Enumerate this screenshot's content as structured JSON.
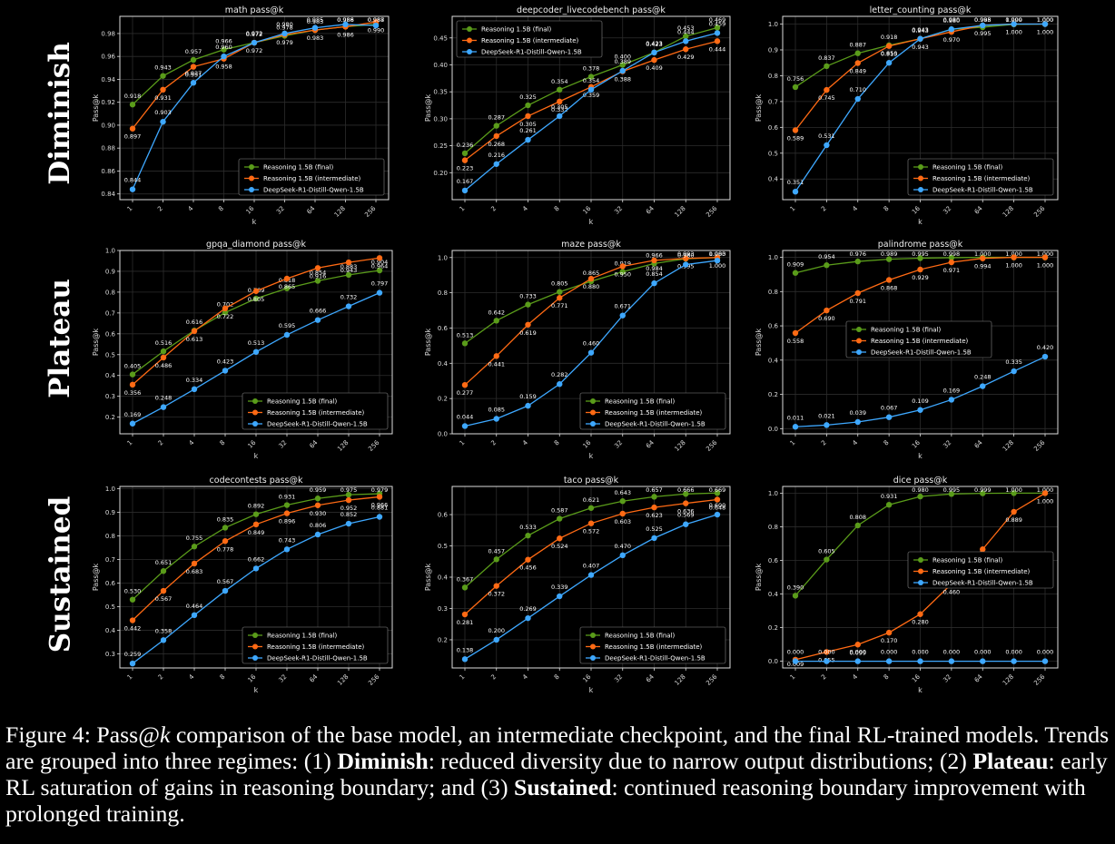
{
  "row_labels": [
    "Diminish",
    "Plateau",
    "Sustained"
  ],
  "series_names": [
    "Reasoning 1.5B (final)",
    "Reasoning 1.5B (intermediate)",
    "DeepSeek-R1-Distill-Qwen-1.5B"
  ],
  "series_colors": [
    "#5a9c1a",
    "#ff6a14",
    "#3ea8ff"
  ],
  "caption": {
    "prefix": "Figure 4: Pass@",
    "k": "k",
    "text1": " comparison of the base model, an intermediate checkpoint, and the final RL-trained models. Trends are grouped into three regimes: (1) ",
    "b1": "Diminish",
    "text2": ": reduced diversity due to narrow output distributions; (2) ",
    "b2": "Plateau",
    "text3": ": early RL saturation of gains in reasoning boundary; and (3) ",
    "b3": "Sustained",
    "text4": ": continued reasoning boundary improvement with prolonged training."
  },
  "chart_data": [
    {
      "type": "line",
      "title": "math pass@k",
      "xlabel": "k",
      "ylabel": "Pass@k",
      "categories": [
        "1",
        "2",
        "4",
        "8",
        "16",
        "32",
        "64",
        "128",
        "256"
      ],
      "ylim": [
        0.835,
        0.995
      ],
      "yticks": [
        0.84,
        0.86,
        0.88,
        0.9,
        0.92,
        0.94,
        0.96,
        0.98
      ],
      "legend": "lower-right",
      "grid": true,
      "series": [
        {
          "name": "Reasoning 1.5B (final)",
          "values": [
            0.918,
            0.943,
            0.957,
            0.966,
            0.972,
            0.978,
            0.983,
            0.986,
            0.988
          ]
        },
        {
          "name": "Reasoning 1.5B (intermediate)",
          "values": [
            0.897,
            0.931,
            0.951,
            0.958,
            0.972,
            0.979,
            0.983,
            0.986,
            0.99
          ]
        },
        {
          "name": "DeepSeek-R1-Distill-Qwen-1.5B",
          "values": [
            0.844,
            0.903,
            0.937,
            0.96,
            0.972,
            0.98,
            0.985,
            0.988,
            0.987
          ]
        }
      ]
    },
    {
      "type": "line",
      "title": "deepcoder_livecodebench pass@k",
      "xlabel": "k",
      "ylabel": "Pass@k",
      "categories": [
        "1",
        "2",
        "4",
        "8",
        "16",
        "32",
        "64",
        "128",
        "256"
      ],
      "ylim": [
        0.15,
        0.49
      ],
      "yticks": [
        0.2,
        0.25,
        0.3,
        0.35,
        0.4,
        0.45
      ],
      "legend": "upper-left",
      "grid": true,
      "series": [
        {
          "name": "Reasoning 1.5B (final)",
          "values": [
            0.236,
            0.287,
            0.325,
            0.354,
            0.378,
            0.4,
            0.423,
            0.453,
            0.469
          ]
        },
        {
          "name": "Reasoning 1.5B (intermediate)",
          "values": [
            0.223,
            0.268,
            0.305,
            0.332,
            0.359,
            0.388,
            0.409,
            0.429,
            0.444
          ]
        },
        {
          "name": "DeepSeek-R1-Distill-Qwen-1.5B",
          "values": [
            0.167,
            0.216,
            0.261,
            0.305,
            0.354,
            0.389,
            0.423,
            0.444,
            0.459
          ]
        }
      ]
    },
    {
      "type": "line",
      "title": "letter_counting pass@k",
      "xlabel": "k",
      "ylabel": "Pass@k",
      "categories": [
        "1",
        "2",
        "4",
        "8",
        "16",
        "32",
        "64",
        "128",
        "256"
      ],
      "ylim": [
        0.32,
        1.03
      ],
      "yticks": [
        0.4,
        0.5,
        0.6,
        0.7,
        0.8,
        0.9,
        1.0
      ],
      "legend": "lower-right",
      "grid": true,
      "series": [
        {
          "name": "Reasoning 1.5B (final)",
          "values": [
            0.756,
            0.837,
            0.887,
            0.918,
            0.943,
            0.98,
            0.988,
            0.999,
            1.0
          ]
        },
        {
          "name": "Reasoning 1.5B (intermediate)",
          "values": [
            0.589,
            0.745,
            0.849,
            0.915,
            0.943,
            0.97,
            0.995,
            1.0,
            1.0
          ]
        },
        {
          "name": "DeepSeek-R1-Distill-Qwen-1.5B",
          "values": [
            0.351,
            0.531,
            0.71,
            0.85,
            0.943,
            0.98,
            0.995,
            1.0,
            1.0
          ]
        }
      ]
    },
    {
      "type": "line",
      "title": "gpqa_diamond pass@k",
      "xlabel": "k",
      "ylabel": "Pass@k",
      "categories": [
        "1",
        "2",
        "4",
        "8",
        "16",
        "32",
        "64",
        "128",
        "256"
      ],
      "ylim": [
        0.12,
        1.0
      ],
      "yticks": [
        0.2,
        0.3,
        0.4,
        0.5,
        0.6,
        0.7,
        0.8,
        0.9,
        1.0
      ],
      "legend": "lower-right",
      "grid": true,
      "series": [
        {
          "name": "Reasoning 1.5B (final)",
          "values": [
            0.405,
            0.516,
            0.616,
            0.702,
            0.769,
            0.818,
            0.854,
            0.883,
            0.904
          ]
        },
        {
          "name": "Reasoning 1.5B (intermediate)",
          "values": [
            0.356,
            0.486,
            0.613,
            0.722,
            0.805,
            0.865,
            0.916,
            0.943,
            0.964
          ]
        },
        {
          "name": "DeepSeek-R1-Distill-Qwen-1.5B",
          "values": [
            0.169,
            0.248,
            0.334,
            0.423,
            0.513,
            0.595,
            0.666,
            0.732,
            0.797
          ]
        }
      ]
    },
    {
      "type": "line",
      "title": "maze pass@k",
      "xlabel": "k",
      "ylabel": "Pass@k",
      "categories": [
        "1",
        "2",
        "4",
        "8",
        "16",
        "32",
        "64",
        "128",
        "256"
      ],
      "ylim": [
        0.0,
        1.04
      ],
      "yticks": [
        0.0,
        0.2,
        0.4,
        0.6,
        0.8,
        1.0
      ],
      "legend": "lower-right",
      "grid": true,
      "series": [
        {
          "name": "Reasoning 1.5B (final)",
          "values": [
            0.513,
            0.642,
            0.733,
            0.805,
            0.865,
            0.919,
            0.966,
            0.993,
            1.0
          ]
        },
        {
          "name": "Reasoning 1.5B (intermediate)",
          "values": [
            0.277,
            0.441,
            0.619,
            0.771,
            0.88,
            0.95,
            0.984,
            0.995,
            1.0
          ]
        },
        {
          "name": "DeepSeek-R1-Distill-Qwen-1.5B",
          "values": [
            0.044,
            0.085,
            0.159,
            0.282,
            0.46,
            0.671,
            0.854,
            0.96,
            0.983
          ]
        }
      ]
    },
    {
      "type": "line",
      "title": "palindrome pass@k",
      "xlabel": "k",
      "ylabel": "Pass@k",
      "categories": [
        "1",
        "2",
        "4",
        "8",
        "16",
        "32",
        "64",
        "128",
        "256"
      ],
      "ylim": [
        -0.03,
        1.04
      ],
      "yticks": [
        0.0,
        0.2,
        0.4,
        0.6,
        0.8,
        1.0
      ],
      "legend": "center-left",
      "grid": true,
      "series": [
        {
          "name": "Reasoning 1.5B (final)",
          "values": [
            0.909,
            0.954,
            0.976,
            0.989,
            0.995,
            0.998,
            1.0,
            1.0,
            1.0
          ]
        },
        {
          "name": "Reasoning 1.5B (intermediate)",
          "values": [
            0.558,
            0.69,
            0.791,
            0.868,
            0.929,
            0.971,
            0.994,
            1.0,
            1.0
          ]
        },
        {
          "name": "DeepSeek-R1-Distill-Qwen-1.5B",
          "values": [
            0.011,
            0.021,
            0.039,
            0.067,
            0.109,
            0.169,
            0.248,
            0.335,
            0.42
          ]
        }
      ]
    },
    {
      "type": "line",
      "title": "codecontests pass@k",
      "xlabel": "k",
      "ylabel": "Pass@k",
      "categories": [
        "1",
        "2",
        "4",
        "8",
        "16",
        "32",
        "64",
        "128",
        "256"
      ],
      "ylim": [
        0.24,
        1.01
      ],
      "yticks": [
        0.3,
        0.4,
        0.5,
        0.6,
        0.7,
        0.8,
        0.9,
        1.0
      ],
      "legend": "lower-right",
      "grid": true,
      "series": [
        {
          "name": "Reasoning 1.5B (final)",
          "values": [
            0.53,
            0.651,
            0.755,
            0.835,
            0.892,
            0.931,
            0.959,
            0.975,
            0.979
          ]
        },
        {
          "name": "Reasoning 1.5B (intermediate)",
          "values": [
            0.442,
            0.567,
            0.683,
            0.778,
            0.849,
            0.896,
            0.93,
            0.952,
            0.966
          ]
        },
        {
          "name": "DeepSeek-R1-Distill-Qwen-1.5B",
          "values": [
            0.259,
            0.358,
            0.464,
            0.567,
            0.662,
            0.743,
            0.806,
            0.852,
            0.881
          ]
        }
      ]
    },
    {
      "type": "line",
      "title": "taco pass@k",
      "xlabel": "k",
      "ylabel": "Pass@k",
      "categories": [
        "1",
        "2",
        "4",
        "8",
        "16",
        "32",
        "64",
        "128",
        "256"
      ],
      "ylim": [
        0.11,
        0.69
      ],
      "yticks": [
        0.2,
        0.3,
        0.4,
        0.5,
        0.6
      ],
      "legend": "lower-right",
      "grid": true,
      "series": [
        {
          "name": "Reasoning 1.5B (final)",
          "values": [
            0.367,
            0.457,
            0.533,
            0.587,
            0.621,
            0.643,
            0.657,
            0.666,
            0.669
          ]
        },
        {
          "name": "Reasoning 1.5B (intermediate)",
          "values": [
            0.281,
            0.372,
            0.456,
            0.524,
            0.572,
            0.603,
            0.623,
            0.636,
            0.648
          ]
        },
        {
          "name": "DeepSeek-R1-Distill-Qwen-1.5B",
          "values": [
            0.138,
            0.2,
            0.269,
            0.339,
            0.407,
            0.47,
            0.525,
            0.569,
            0.6
          ]
        }
      ]
    },
    {
      "type": "line",
      "title": "dice pass@k",
      "xlabel": "k",
      "ylabel": "Pass@k",
      "categories": [
        "1",
        "2",
        "4",
        "8",
        "16",
        "32",
        "64",
        "128",
        "256"
      ],
      "ylim": [
        -0.04,
        1.04
      ],
      "yticks": [
        0.0,
        0.2,
        0.4,
        0.6,
        0.8,
        1.0
      ],
      "legend": "center-right",
      "grid": true,
      "series": [
        {
          "name": "Reasoning 1.5B (final)",
          "values": [
            0.39,
            0.605,
            0.808,
            0.931,
            0.98,
            0.995,
            0.999,
            1.0,
            1.0
          ]
        },
        {
          "name": "Reasoning 1.5B (intermediate)",
          "values": [
            0.009,
            0.055,
            0.099,
            0.17,
            0.28,
            0.46,
            0.666,
            0.889,
            1.0
          ]
        },
        {
          "name": "DeepSeek-R1-Distill-Qwen-1.5B",
          "values": [
            0.0,
            0.0,
            0.0,
            0.0,
            0.0,
            0.0,
            0.0,
            0.0,
            0.0
          ]
        }
      ]
    }
  ]
}
